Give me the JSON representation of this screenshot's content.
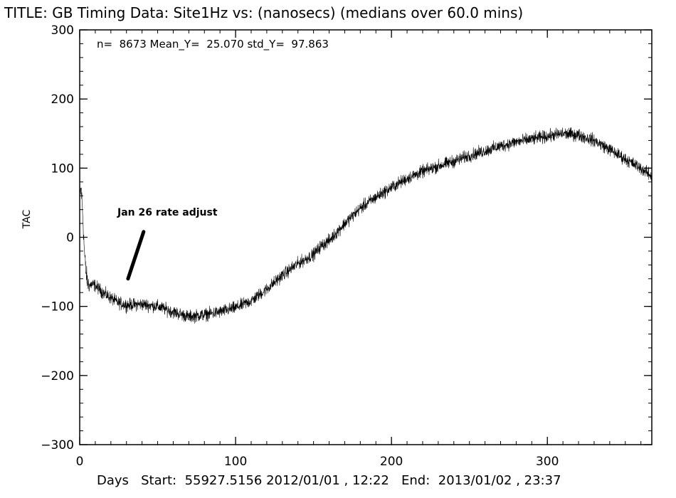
{
  "chart_data": {
    "type": "line",
    "title": "TITLE: GB Timing Data: Site1Hz vs: (nanosecs) (medians over 60.0 mins)",
    "stats_text": "n=  8673 Mean_Y=  25.070 std_Y=  97.863",
    "ylabel": "TAC",
    "xlabel_line": "Days   Start:  55927.5156 2012/01/01 , 12:22   End:  2013/01/02 , 23:37",
    "annotation": {
      "text": "Jan 26 rate adjust",
      "arrow_from": [
        41,
        8
      ],
      "arrow_to": [
        31,
        -60
      ]
    },
    "xlim": [
      0,
      367
    ],
    "ylim": [
      -300,
      300
    ],
    "x_ticks": [
      0,
      100,
      200,
      300
    ],
    "y_ticks": [
      -300,
      -200,
      -100,
      0,
      100,
      200,
      300
    ],
    "series": [
      {
        "x": [
          0,
          1,
          2,
          3,
          4,
          5,
          6,
          8,
          10,
          15,
          20,
          25,
          30,
          40,
          50,
          60,
          70,
          80,
          90,
          100,
          110,
          120,
          130,
          140,
          150,
          155,
          160,
          170,
          180,
          190,
          200,
          210,
          220,
          230,
          240,
          250,
          260,
          270,
          280,
          290,
          300,
          310,
          320,
          330,
          340,
          350,
          360,
          367
        ],
        "y": [
          60,
          70,
          30,
          -20,
          -50,
          -65,
          -70,
          -68,
          -70,
          -80,
          -88,
          -95,
          -98,
          -97,
          -100,
          -108,
          -115,
          -112,
          -108,
          -102,
          -92,
          -75,
          -55,
          -38,
          -25,
          -12,
          -5,
          20,
          42,
          58,
          72,
          85,
          95,
          103,
          110,
          118,
          125,
          132,
          138,
          142,
          146,
          150,
          148,
          140,
          127,
          113,
          100,
          88
        ]
      }
    ]
  }
}
